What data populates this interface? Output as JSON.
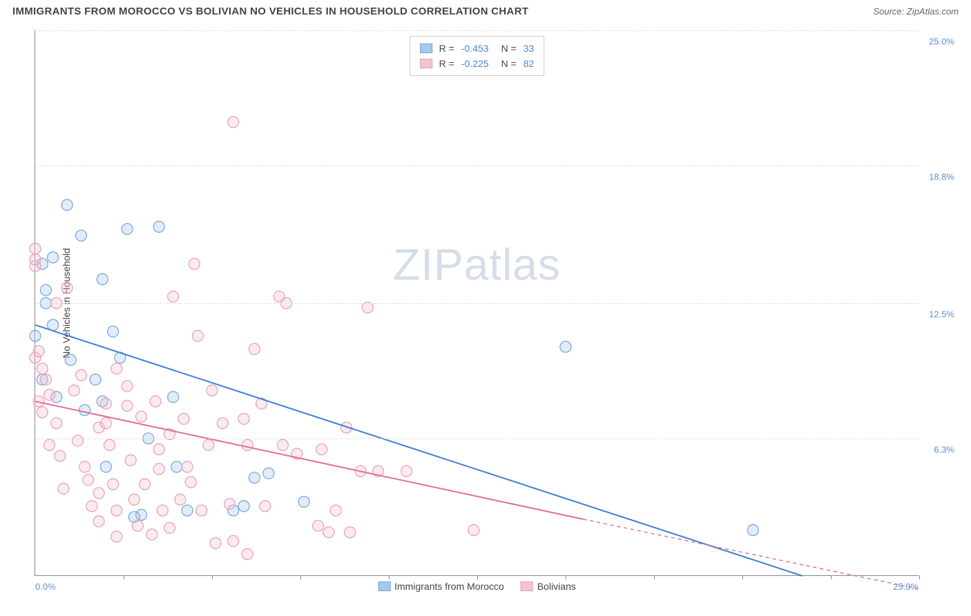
{
  "title": "IMMIGRANTS FROM MOROCCO VS BOLIVIAN NO VEHICLES IN HOUSEHOLD CORRELATION CHART",
  "source_label": "Source: ZipAtlas.com",
  "watermark": {
    "left": "ZIP",
    "right": "atlas"
  },
  "y_axis_title": "No Vehicles in Household",
  "chart": {
    "type": "scatter",
    "xlim": [
      0,
      25
    ],
    "ylim": [
      0,
      25
    ],
    "x_axis_labels": {
      "min": "0.0%",
      "max": "25.0%"
    },
    "y_ticks": [
      {
        "v": 6.3,
        "label": "6.3%"
      },
      {
        "v": 12.5,
        "label": "12.5%"
      },
      {
        "v": 18.8,
        "label": "18.8%"
      },
      {
        "v": 25.0,
        "label": "25.0%"
      }
    ],
    "x_tick_positions": [
      2.5,
      5,
      7.5,
      10,
      12.5,
      15,
      17.5,
      20,
      22.5,
      25
    ],
    "background_color": "#ffffff",
    "grid_color": "#dddddd",
    "marker_radius": 8,
    "marker_fill_opacity": 0.35,
    "marker_stroke_width": 1.2,
    "line_width": 2,
    "line_width_dashed": 1.5,
    "series": [
      {
        "name": "Immigrants from Morocco",
        "color_stroke": "#6fa3e0",
        "color_fill": "#a8c8eb",
        "color_line": "#3f7fd1",
        "R": -0.453,
        "N": 33,
        "trend_solid": {
          "x1": 0,
          "y1": 11.5,
          "x2": 21.7,
          "y2": 0
        },
        "points": [
          {
            "x": 0.9,
            "y": 17.0
          },
          {
            "x": 0.2,
            "y": 14.3
          },
          {
            "x": 0.3,
            "y": 12.5
          },
          {
            "x": 0.5,
            "y": 14.6
          },
          {
            "x": 1.3,
            "y": 15.6
          },
          {
            "x": 2.6,
            "y": 15.9
          },
          {
            "x": 3.5,
            "y": 16.0
          },
          {
            "x": 1.9,
            "y": 13.6
          },
          {
            "x": 2.2,
            "y": 11.2
          },
          {
            "x": 0.5,
            "y": 11.5
          },
          {
            "x": 0.3,
            "y": 13.1
          },
          {
            "x": 1.0,
            "y": 9.9
          },
          {
            "x": 1.7,
            "y": 9.0
          },
          {
            "x": 1.9,
            "y": 8.0
          },
          {
            "x": 1.4,
            "y": 7.6
          },
          {
            "x": 2.4,
            "y": 10.0
          },
          {
            "x": 2.0,
            "y": 5.0
          },
          {
            "x": 3.2,
            "y": 6.3
          },
          {
            "x": 3.0,
            "y": 2.8
          },
          {
            "x": 4.0,
            "y": 5.0
          },
          {
            "x": 4.3,
            "y": 3.0
          },
          {
            "x": 5.6,
            "y": 3.0
          },
          {
            "x": 5.9,
            "y": 3.2
          },
          {
            "x": 6.2,
            "y": 4.5
          },
          {
            "x": 6.6,
            "y": 4.7
          },
          {
            "x": 7.6,
            "y": 3.4
          },
          {
            "x": 15.0,
            "y": 10.5
          },
          {
            "x": 20.3,
            "y": 2.1
          },
          {
            "x": 0.2,
            "y": 9.0
          },
          {
            "x": 0.6,
            "y": 8.2
          },
          {
            "x": 0.0,
            "y": 11.0
          },
          {
            "x": 2.8,
            "y": 2.7
          },
          {
            "x": 3.9,
            "y": 8.2
          }
        ]
      },
      {
        "name": "Bolivians",
        "color_stroke": "#e89cb1",
        "color_fill": "#f4c3d1",
        "color_line": "#e06f93",
        "R": -0.225,
        "N": 82,
        "trend_solid": {
          "x1": 0,
          "y1": 8.0,
          "x2": 15.5,
          "y2": 2.6
        },
        "trend_dashed": {
          "x1": 15.5,
          "y1": 2.6,
          "x2": 25,
          "y2": -0.6
        },
        "points": [
          {
            "x": 0.0,
            "y": 15.0
          },
          {
            "x": 0.0,
            "y": 14.2
          },
          {
            "x": 0.0,
            "y": 14.5
          },
          {
            "x": 0.0,
            "y": 10.0
          },
          {
            "x": 0.1,
            "y": 10.3
          },
          {
            "x": 0.2,
            "y": 9.5
          },
          {
            "x": 0.3,
            "y": 9.0
          },
          {
            "x": 0.1,
            "y": 8.0
          },
          {
            "x": 0.2,
            "y": 7.5
          },
          {
            "x": 0.4,
            "y": 8.3
          },
          {
            "x": 0.6,
            "y": 7.0
          },
          {
            "x": 0.7,
            "y": 5.5
          },
          {
            "x": 0.8,
            "y": 4.0
          },
          {
            "x": 0.9,
            "y": 13.2
          },
          {
            "x": 0.6,
            "y": 12.5
          },
          {
            "x": 1.1,
            "y": 8.5
          },
          {
            "x": 1.3,
            "y": 9.2
          },
          {
            "x": 1.2,
            "y": 6.2
          },
          {
            "x": 1.4,
            "y": 5.0
          },
          {
            "x": 1.5,
            "y": 4.4
          },
          {
            "x": 1.6,
            "y": 3.2
          },
          {
            "x": 1.8,
            "y": 6.8
          },
          {
            "x": 1.8,
            "y": 3.8
          },
          {
            "x": 1.8,
            "y": 2.5
          },
          {
            "x": 2.0,
            "y": 7.9
          },
          {
            "x": 2.0,
            "y": 7.0
          },
          {
            "x": 2.1,
            "y": 6.0
          },
          {
            "x": 2.3,
            "y": 9.5
          },
          {
            "x": 2.2,
            "y": 4.2
          },
          {
            "x": 2.3,
            "y": 3.0
          },
          {
            "x": 2.3,
            "y": 1.8
          },
          {
            "x": 2.6,
            "y": 8.7
          },
          {
            "x": 2.6,
            "y": 7.8
          },
          {
            "x": 2.7,
            "y": 5.3
          },
          {
            "x": 2.8,
            "y": 3.5
          },
          {
            "x": 2.9,
            "y": 2.3
          },
          {
            "x": 3.0,
            "y": 7.3
          },
          {
            "x": 3.1,
            "y": 4.2
          },
          {
            "x": 3.4,
            "y": 8.0
          },
          {
            "x": 3.3,
            "y": 1.9
          },
          {
            "x": 3.5,
            "y": 5.8
          },
          {
            "x": 3.5,
            "y": 4.9
          },
          {
            "x": 3.6,
            "y": 3.0
          },
          {
            "x": 3.8,
            "y": 6.5
          },
          {
            "x": 3.8,
            "y": 2.2
          },
          {
            "x": 3.9,
            "y": 12.8
          },
          {
            "x": 4.2,
            "y": 7.2
          },
          {
            "x": 4.1,
            "y": 3.5
          },
          {
            "x": 4.3,
            "y": 5.0
          },
          {
            "x": 4.4,
            "y": 4.3
          },
          {
            "x": 4.5,
            "y": 14.3
          },
          {
            "x": 4.6,
            "y": 11.0
          },
          {
            "x": 4.7,
            "y": 3.0
          },
          {
            "x": 4.9,
            "y": 6.0
          },
          {
            "x": 5.1,
            "y": 1.5
          },
          {
            "x": 5.0,
            "y": 8.5
          },
          {
            "x": 5.3,
            "y": 7.0
          },
          {
            "x": 5.5,
            "y": 3.3
          },
          {
            "x": 5.6,
            "y": 1.6
          },
          {
            "x": 5.6,
            "y": 20.8
          },
          {
            "x": 5.9,
            "y": 7.2
          },
          {
            "x": 6.0,
            "y": 6.0
          },
          {
            "x": 6.0,
            "y": 1.0
          },
          {
            "x": 6.2,
            "y": 10.4
          },
          {
            "x": 6.4,
            "y": 7.9
          },
          {
            "x": 6.5,
            "y": 3.2
          },
          {
            "x": 6.9,
            "y": 12.8
          },
          {
            "x": 7.0,
            "y": 6.0
          },
          {
            "x": 7.1,
            "y": 12.5
          },
          {
            "x": 7.4,
            "y": 5.6
          },
          {
            "x": 8.0,
            "y": 2.3
          },
          {
            "x": 8.1,
            "y": 5.8
          },
          {
            "x": 8.3,
            "y": 2.0
          },
          {
            "x": 8.5,
            "y": 3.0
          },
          {
            "x": 8.8,
            "y": 6.8
          },
          {
            "x": 8.9,
            "y": 2.0
          },
          {
            "x": 9.2,
            "y": 4.8
          },
          {
            "x": 9.4,
            "y": 12.3
          },
          {
            "x": 9.7,
            "y": 4.8
          },
          {
            "x": 10.5,
            "y": 4.8
          },
          {
            "x": 12.4,
            "y": 2.1
          },
          {
            "x": 0.4,
            "y": 6.0
          }
        ]
      }
    ],
    "stats_legend": {
      "text_color": "#444444",
      "value_color": "#4a86d8"
    }
  },
  "bottom_legend": [
    {
      "label": "Immigrants from Morocco",
      "fill": "#a8c8eb",
      "stroke": "#6fa3e0"
    },
    {
      "label": "Bolivians",
      "fill": "#f4c3d1",
      "stroke": "#e89cb1"
    }
  ]
}
